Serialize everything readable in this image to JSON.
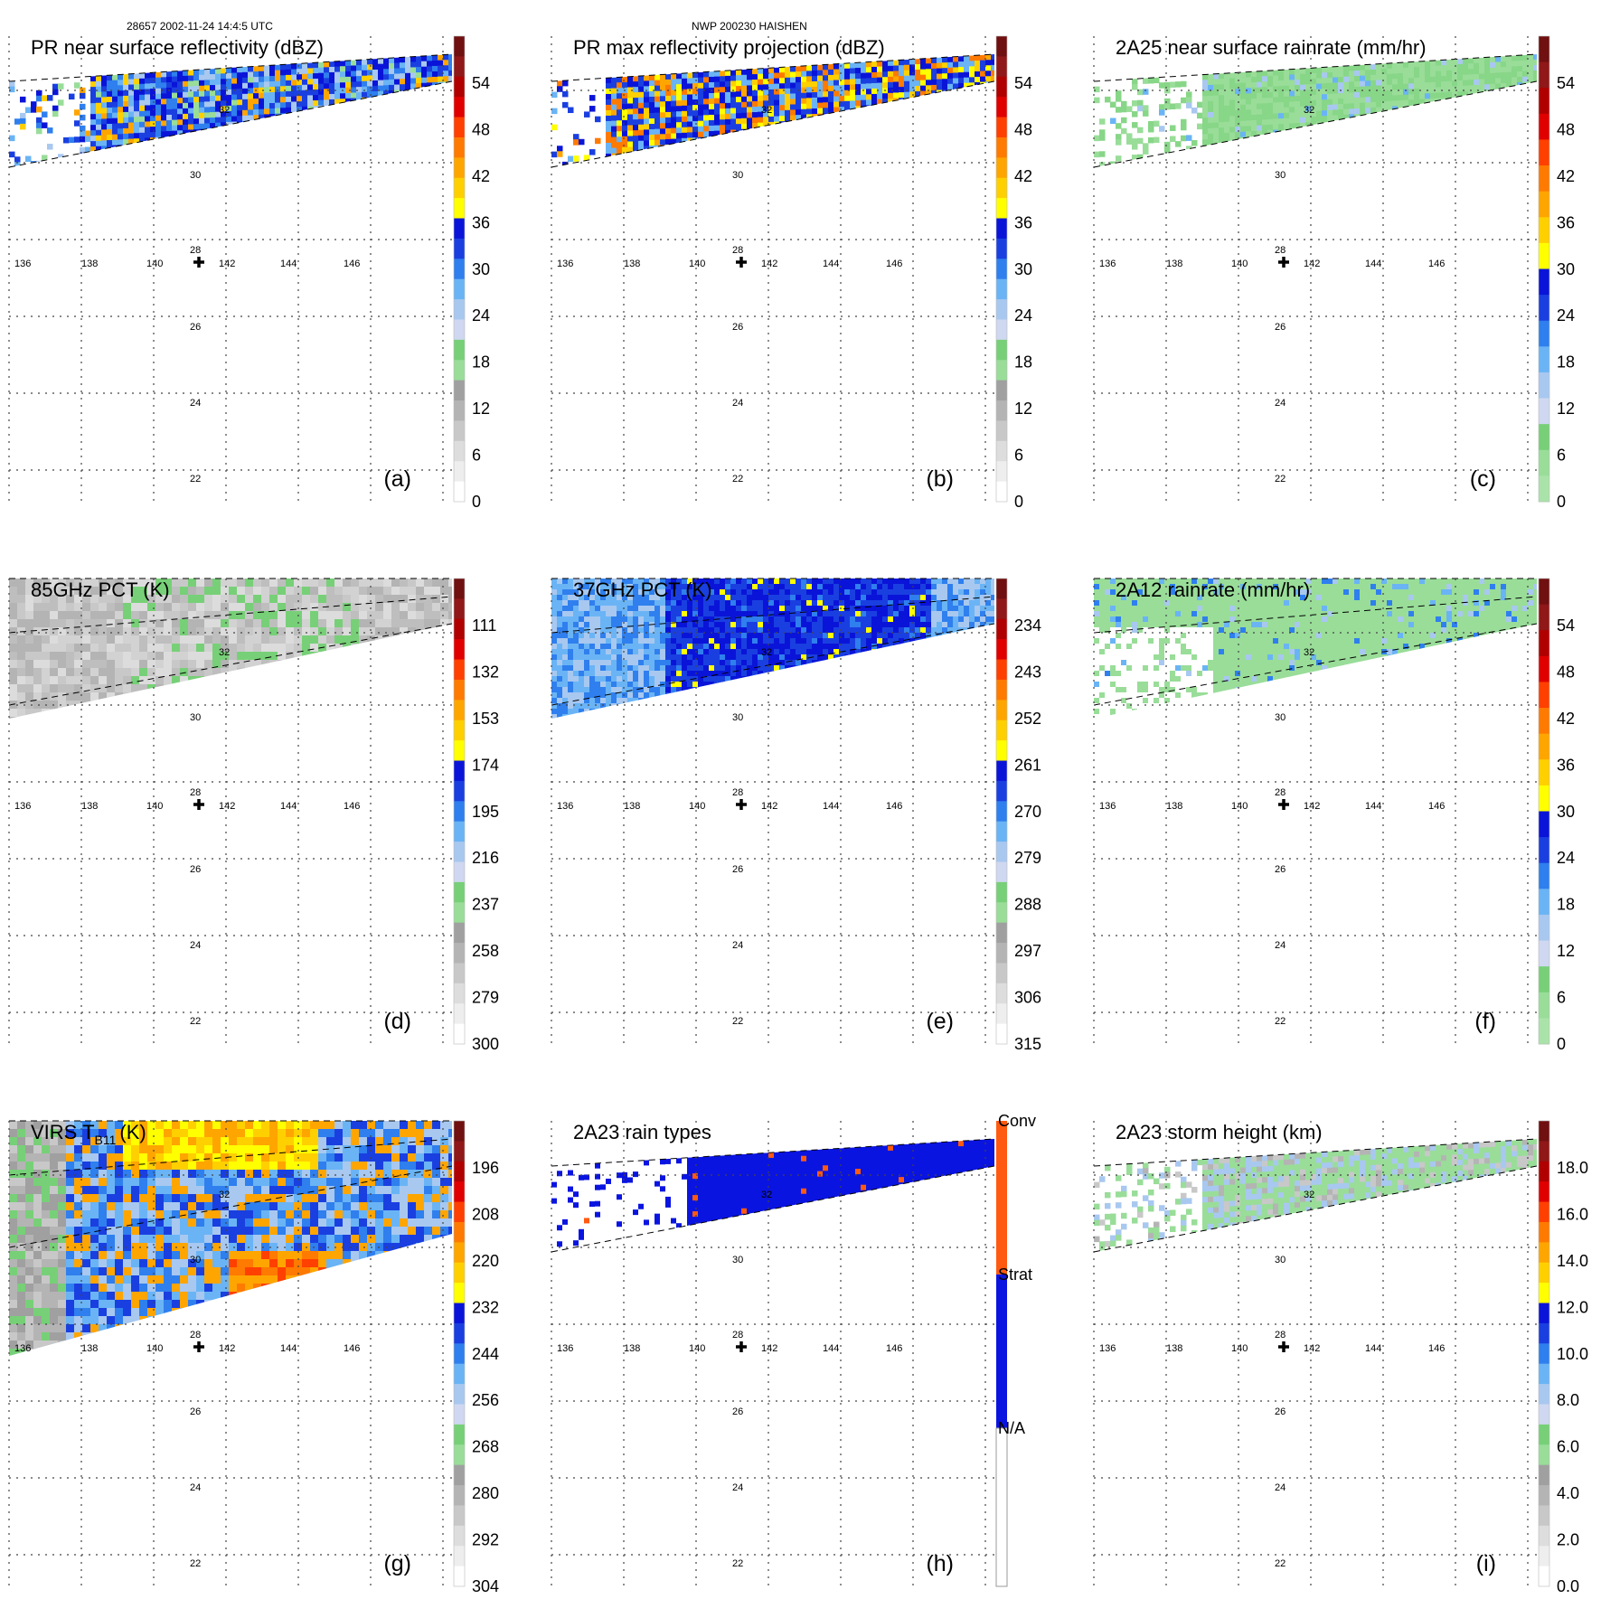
{
  "header": {
    "left": "28657 2002-11-24 14:4:5 UTC",
    "middle": "NWP 200230 HAISHEN"
  },
  "grid": {
    "lon_labels": [
      "136",
      "138",
      "140",
      "142",
      "144",
      "146"
    ],
    "lat_labels": [
      "30",
      "28",
      "26",
      "24",
      "22"
    ],
    "lat_label_32": "32"
  },
  "colors": {
    "grays": [
      "#ffffff",
      "#eeeeee",
      "#dddddd",
      "#c8c8c8",
      "#b4b4b4",
      "#a0a0a0"
    ],
    "greens": [
      "#99dd99",
      "#77d077"
    ],
    "blues": [
      "#cfd8f0",
      "#a8c8f0",
      "#6ab4f5",
      "#2f7fee",
      "#1a3fe0",
      "#0a14d8"
    ],
    "warm": [
      "#ffff00",
      "#ffd000",
      "#ffa500",
      "#ff7a00",
      "#ff4000",
      "#e00000",
      "#b00000",
      "#701010"
    ]
  },
  "panels": [
    {
      "id": "a",
      "title": "PR near surface reflectivity (dBZ)",
      "letter": "(a)",
      "cbar_labels": [
        "54",
        "48",
        "42",
        "36",
        "30",
        "24",
        "18",
        "12",
        "6",
        "0"
      ],
      "scheme": "standard",
      "swath": "pr",
      "fill": "reflect-near"
    },
    {
      "id": "b",
      "title": "PR max reflectivity projection (dBZ)",
      "letter": "(b)",
      "cbar_labels": [
        "54",
        "48",
        "42",
        "36",
        "30",
        "24",
        "18",
        "12",
        "6",
        "0"
      ],
      "scheme": "standard",
      "swath": "pr",
      "fill": "reflect-max"
    },
    {
      "id": "c",
      "title": "2A25 near surface rainrate (mm/hr)",
      "letter": "(c)",
      "cbar_labels": [
        "54",
        "48",
        "42",
        "36",
        "30",
        "24",
        "18",
        "12",
        "6",
        "0"
      ],
      "scheme": "rain",
      "swath": "pr",
      "fill": "rain25"
    },
    {
      "id": "d",
      "title": "85GHz PCT (K)",
      "letter": "(d)",
      "cbar_labels": [
        "111",
        "132",
        "153",
        "174",
        "195",
        "216",
        "237",
        "258",
        "279",
        "300"
      ],
      "scheme": "standard",
      "swath": "tmi",
      "fill": "pct85"
    },
    {
      "id": "e",
      "title": "37GHz PCT (K)",
      "letter": "(e)",
      "cbar_labels": [
        "234",
        "243",
        "252",
        "261",
        "270",
        "279",
        "288",
        "297",
        "306",
        "315"
      ],
      "scheme": "standard",
      "swath": "tmi",
      "fill": "pct37"
    },
    {
      "id": "f",
      "title": "2A12 rainrate (mm/hr)",
      "letter": "(f)",
      "cbar_labels": [
        "54",
        "48",
        "42",
        "36",
        "30",
        "24",
        "18",
        "12",
        "6",
        "0"
      ],
      "scheme": "rain",
      "swath": "tmi",
      "fill": "rain12"
    },
    {
      "id": "g",
      "title": "VIRS T",
      "title_sub": "B11",
      "title_tail": "(K)",
      "letter": "(g)",
      "cbar_labels": [
        "196",
        "208",
        "220",
        "232",
        "244",
        "256",
        "268",
        "280",
        "292",
        "304"
      ],
      "scheme": "standard",
      "swath": "virs",
      "fill": "virs"
    },
    {
      "id": "h",
      "title": "2A23 rain types",
      "letter": "(h)",
      "cbar_labels": [
        "Conv",
        "Strat",
        "N/A"
      ],
      "scheme": "types",
      "swath": "pr",
      "fill": "types"
    },
    {
      "id": "i",
      "title": "2A23 storm height (km)",
      "letter": "(i)",
      "cbar_labels": [
        "18.0",
        "16.0",
        "14.0",
        "12.0",
        "10.0",
        "8.0",
        "6.0",
        "4.0",
        "2.0",
        "0.0"
      ],
      "scheme": "standard",
      "swath": "pr",
      "fill": "height"
    }
  ]
}
